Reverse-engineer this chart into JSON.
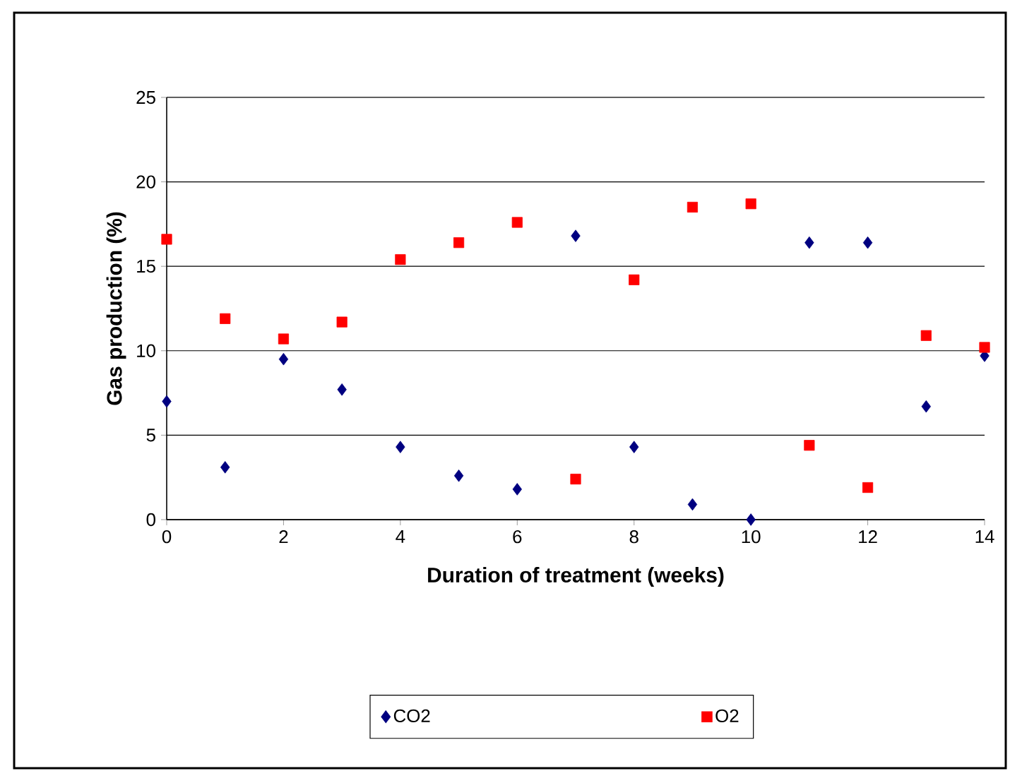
{
  "chart_data": {
    "type": "scatter",
    "xlabel": "Duration of treatment (weeks)",
    "ylabel": "Gas production (%)",
    "x": [
      0,
      1,
      2,
      3,
      4,
      5,
      6,
      7,
      8,
      9,
      10,
      11,
      12,
      13,
      14
    ],
    "series": [
      {
        "name": "CO2",
        "color": "#000080",
        "marker": "diamond",
        "values": [
          7.0,
          3.1,
          9.5,
          7.7,
          4.3,
          2.6,
          1.8,
          16.8,
          4.3,
          0.9,
          0,
          16.4,
          16.4,
          6.7,
          9.7
        ]
      },
      {
        "name": "O2",
        "color": "#ff0000",
        "marker": "square",
        "values": [
          16.6,
          11.9,
          10.7,
          11.7,
          15.4,
          16.4,
          17.6,
          2.4,
          14.2,
          18.5,
          18.7,
          4.4,
          1.9,
          10.9,
          10.2
        ]
      }
    ],
    "xlim": [
      0,
      14
    ],
    "xticks": [
      0,
      2,
      4,
      6,
      8,
      10,
      12,
      14
    ],
    "ylim": [
      0,
      25
    ],
    "yticks": [
      0,
      5,
      10,
      15,
      20,
      25
    ],
    "grid": "y",
    "legend": "bottom"
  }
}
